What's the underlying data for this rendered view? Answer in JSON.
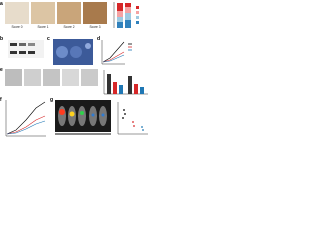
{
  "panels": {
    "a": "a",
    "b": "b",
    "c": "c",
    "d": "d",
    "e": "e",
    "f": "f",
    "g": "g"
  },
  "scores": [
    "Score 0",
    "Score 1",
    "Score 2",
    "Score 3"
  ]
}
